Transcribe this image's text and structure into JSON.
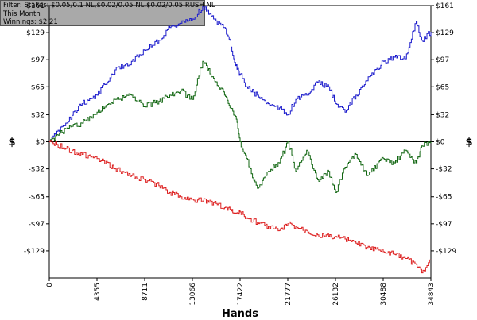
{
  "info": {
    "filter": "Filter: Stakes: $0.05/0.1 NL,$0.02/0.05 NL,$0.02/0.05 RUSH NL",
    "period": "This Month",
    "winnings": "Winnings: $2.21"
  },
  "chart_data": {
    "type": "line",
    "xlabel": "Hands",
    "ylabel": "$",
    "xlim": [
      0,
      34843
    ],
    "ylim": [
      -161,
      161
    ],
    "x_ticks": [
      0,
      4355,
      8711,
      13066,
      17422,
      21777,
      26132,
      30488,
      34843
    ],
    "y_ticks": [
      {
        "value": 161,
        "label": "$161"
      },
      {
        "value": 129,
        "label": "$129"
      },
      {
        "value": 97,
        "label": "$97"
      },
      {
        "value": 65,
        "label": "$65"
      },
      {
        "value": 32,
        "label": "$32"
      },
      {
        "value": 0,
        "label": "$0"
      },
      {
        "value": -32,
        "label": "-$32"
      },
      {
        "value": -65,
        "label": "-$65"
      },
      {
        "value": -97,
        "label": "-$97"
      },
      {
        "value": -129,
        "label": "-$129"
      }
    ],
    "zero_line": true,
    "grid": false,
    "series": [
      {
        "color": "#1c1ccc",
        "x": [
          0,
          1500,
          3000,
          4355,
          6000,
          7500,
          8711,
          10000,
          11000,
          12000,
          13066,
          14000,
          15000,
          16000,
          16500,
          17000,
          17422,
          18000,
          19000,
          20000,
          21000,
          21777,
          22500,
          23500,
          24500,
          25500,
          26132,
          27000,
          28000,
          29000,
          30488,
          31500,
          32500,
          33500,
          34000,
          34843
        ],
        "y": [
          0,
          22,
          45,
          55,
          85,
          95,
          108,
          120,
          135,
          140,
          145,
          160,
          145,
          135,
          120,
          90,
          80,
          65,
          55,
          45,
          40,
          32,
          50,
          55,
          70,
          65,
          45,
          35,
          55,
          72,
          95,
          100,
          98,
          142,
          120,
          130
        ]
      },
      {
        "color": "#116611",
        "x": [
          0,
          1500,
          3000,
          4355,
          6000,
          7500,
          8711,
          10000,
          11000,
          12000,
          13066,
          14000,
          15000,
          16000,
          16500,
          17000,
          17422,
          18000,
          19000,
          20000,
          21000,
          21777,
          22500,
          23500,
          24500,
          25500,
          26132,
          27000,
          28000,
          29000,
          30488,
          31500,
          32500,
          33500,
          34000,
          34843
        ],
        "y": [
          0,
          15,
          22,
          35,
          50,
          55,
          42,
          48,
          55,
          60,
          50,
          95,
          75,
          55,
          40,
          30,
          0,
          -20,
          -55,
          -35,
          -25,
          0,
          -35,
          -10,
          -45,
          -35,
          -60,
          -30,
          -15,
          -40,
          -20,
          -25,
          -10,
          -25,
          -5,
          0
        ]
      },
      {
        "color": "#dd2020",
        "x": [
          0,
          1500,
          3000,
          4355,
          6000,
          7500,
          8711,
          10000,
          11000,
          12000,
          13066,
          14000,
          15000,
          16000,
          16500,
          17000,
          17422,
          18000,
          19000,
          20000,
          21000,
          21777,
          22500,
          23500,
          24500,
          25500,
          26132,
          27000,
          28000,
          29000,
          30488,
          31500,
          32500,
          33500,
          34000,
          34843
        ],
        "y": [
          0,
          -8,
          -15,
          -20,
          -32,
          -40,
          -45,
          -52,
          -60,
          -65,
          -68,
          -70,
          -72,
          -78,
          -80,
          -85,
          -83,
          -90,
          -95,
          -100,
          -105,
          -97,
          -100,
          -105,
          -110,
          -112,
          -112,
          -115,
          -120,
          -125,
          -130,
          -133,
          -138,
          -145,
          -155,
          -140
        ]
      }
    ]
  }
}
